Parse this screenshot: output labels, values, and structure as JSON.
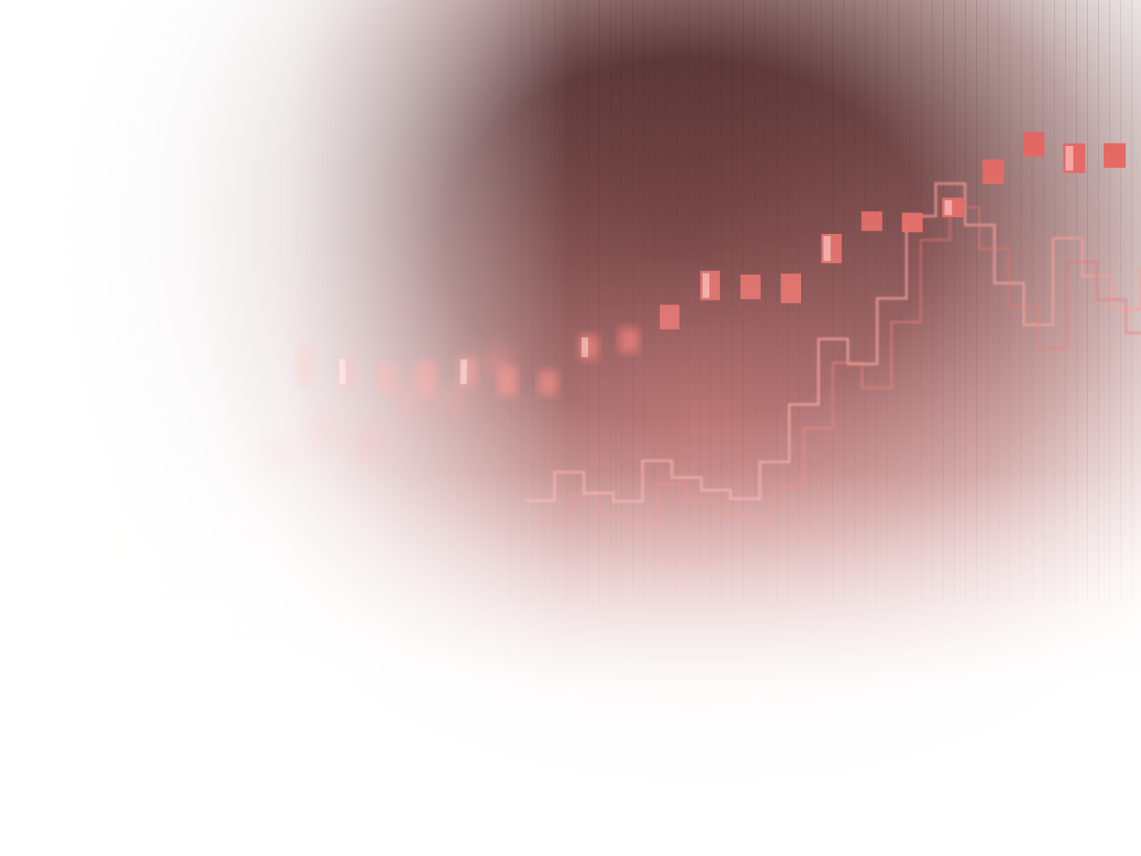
{
  "image": {
    "subject": "abstract-financial-candlestick-chart-photo",
    "colors": {
      "background": "#ffffff",
      "shadow_dark": "#3a1d1e",
      "shadow_mid": "#6e3a3a",
      "accent_red": "#e2554f",
      "accent_light": "#f28a84",
      "highlight": "#ffd9d6"
    },
    "candles_front": [
      {
        "level": 0.66,
        "h": 0.08
      },
      {
        "level": 0.62,
        "h": 0.06
      },
      {
        "level": 0.58,
        "h": 0.06
      },
      {
        "level": 0.55,
        "h": 0.07
      },
      {
        "level": 0.54,
        "h": 0.06
      },
      {
        "level": 0.49,
        "h": 0.06
      },
      {
        "level": 0.46,
        "h": 0.05
      },
      {
        "level": 0.52,
        "h": 0.05
      },
      {
        "level": 0.51,
        "h": 0.05
      },
      {
        "level": 0.54,
        "h": 0.05
      },
      {
        "level": 0.59,
        "h": 0.06
      },
      {
        "level": 0.56,
        "h": 0.05
      },
      {
        "level": 0.53,
        "h": 0.06
      },
      {
        "level": 0.6,
        "h": 0.06
      },
      {
        "level": 0.64,
        "h": 0.04
      },
      {
        "level": 0.61,
        "h": 0.04
      },
      {
        "level": 0.62,
        "h": 0.04
      },
      {
        "level": 0.68,
        "h": 0.05
      },
      {
        "level": 0.72,
        "h": 0.05
      },
      {
        "level": 0.66,
        "h": 0.06
      },
      {
        "level": 0.64,
        "h": 0.05
      }
    ],
    "candles_back": [
      {
        "level": 0.5,
        "h": 0.05
      },
      {
        "level": 0.53,
        "h": 0.06
      },
      {
        "level": 0.48,
        "h": 0.07
      },
      {
        "level": 0.55,
        "h": 0.06
      },
      {
        "level": 0.51,
        "h": 0.05
      },
      {
        "level": 0.58,
        "h": 0.06
      }
    ],
    "step_line": [
      0.42,
      0.47,
      0.4,
      0.36,
      0.44,
      0.38,
      0.33,
      0.29,
      0.36,
      0.48,
      0.62,
      0.54,
      0.68,
      0.86,
      0.92,
      0.8,
      0.64,
      0.52,
      0.71,
      0.6,
      0.5,
      0.58
    ]
  }
}
